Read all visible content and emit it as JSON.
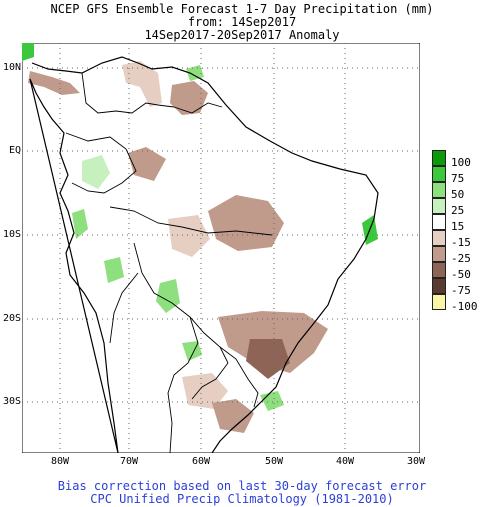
{
  "title": {
    "line1": "NCEP GFS Ensemble Forecast 1-7 Day Precipitation (mm)",
    "line2": "from: 14Sep2017",
    "line3": "14Sep2017-20Sep2017 Anomaly"
  },
  "map": {
    "lat_labels": [
      "10N",
      "EQ",
      "10S",
      "20S",
      "30S"
    ],
    "lon_labels": [
      "80W",
      "70W",
      "60W",
      "50W",
      "40W",
      "30W"
    ]
  },
  "legend": {
    "labels": [
      "100",
      "75",
      "50",
      "25",
      "15",
      "-15",
      "-25",
      "-50",
      "-75",
      "-100"
    ],
    "colors": [
      "#0a9a0a",
      "#3cc83c",
      "#8de07d",
      "#c7f0bf",
      "#ffffff",
      "#e6cec2",
      "#c09a8a",
      "#8e6456",
      "#5a3a30",
      "#fbf5a8"
    ]
  },
  "footer": {
    "line1": "Bias correction based on last 30-day forecast error",
    "line2": "CPC Unified Precip Climatology (1981-2010)"
  }
}
